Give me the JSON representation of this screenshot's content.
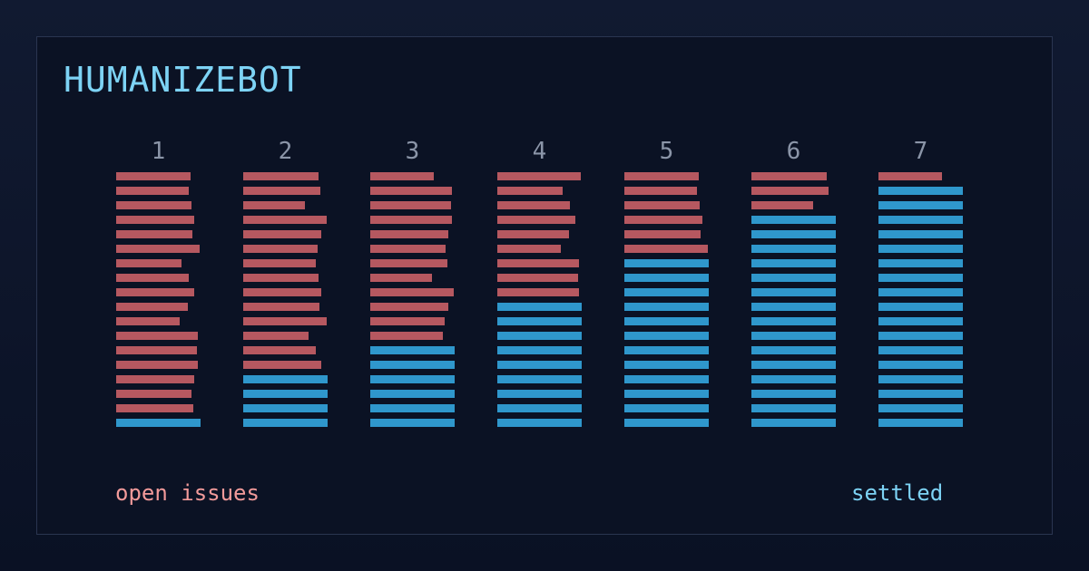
{
  "title": "HUMANIZEBOT",
  "colors": {
    "open": "#b65860",
    "settled": "#2f97cc",
    "column_label": "#8b95a8",
    "title": "#7dd3f5"
  },
  "legend": {
    "open_label": "open issues",
    "settled_label": "settled"
  },
  "chart_data": {
    "type": "bar",
    "title": "HUMANIZEBOT",
    "categories": [
      "1",
      "2",
      "3",
      "4",
      "5",
      "6",
      "7"
    ],
    "rows_per_column": 18,
    "series": [
      {
        "name": "open issues",
        "values": [
          17,
          14,
          12,
          9,
          6,
          3,
          1
        ]
      },
      {
        "name": "settled",
        "values": [
          1,
          4,
          6,
          9,
          12,
          15,
          17
        ]
      }
    ]
  }
}
